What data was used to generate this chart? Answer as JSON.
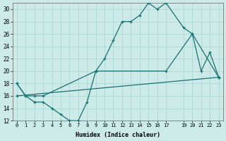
{
  "xlabel": "Humidex (Indice chaleur)",
  "bg_color": "#cceae8",
  "grid_color": "#aad4d0",
  "line_color": "#1a7070",
  "xlim": [
    -0.5,
    23.5
  ],
  "ylim": [
    12,
    31
  ],
  "xticks": [
    0,
    1,
    2,
    3,
    4,
    5,
    6,
    7,
    8,
    9,
    10,
    11,
    12,
    13,
    14,
    15,
    16,
    17,
    19,
    20,
    21,
    22,
    23
  ],
  "yticks": [
    12,
    14,
    16,
    18,
    20,
    22,
    24,
    26,
    28,
    30
  ],
  "line1_x": [
    0,
    1,
    2,
    3,
    4,
    5,
    6,
    7,
    8,
    9,
    10,
    11,
    12,
    13,
    14,
    15,
    16,
    17,
    19,
    20,
    21,
    22,
    23
  ],
  "line1_y": [
    18,
    16,
    15,
    15,
    14,
    13,
    12,
    12,
    15,
    20,
    22,
    25,
    28,
    28,
    29,
    31,
    30,
    31,
    27,
    26,
    20,
    23,
    19
  ],
  "line2_x": [
    0,
    1,
    2,
    3,
    9,
    17,
    20,
    23
  ],
  "line2_y": [
    18,
    16,
    16,
    16,
    20,
    20,
    26,
    19
  ],
  "line3_x": [
    0,
    23
  ],
  "line3_y": [
    16,
    19
  ],
  "marker_size": 3,
  "lw": 0.9
}
